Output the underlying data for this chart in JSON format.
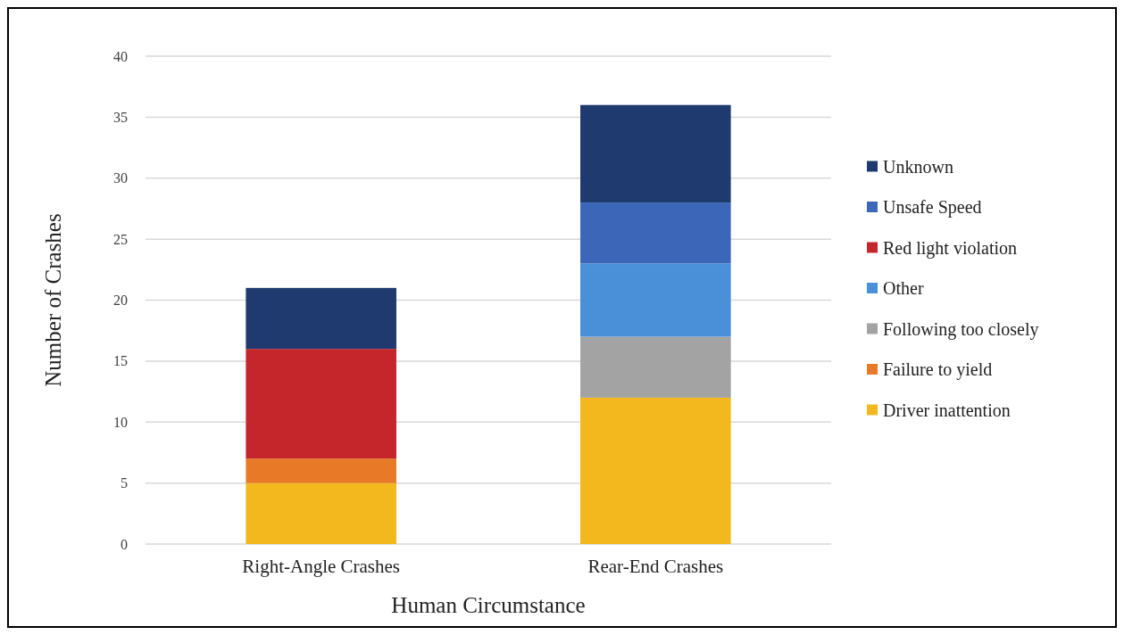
{
  "chart_data": {
    "type": "bar",
    "stacked": true,
    "xlabel": "Human Circumstance",
    "ylabel": "Number of Crashes",
    "categories": [
      "Right-Angle Crashes",
      "Rear-End Crashes"
    ],
    "series": [
      {
        "name": "Driver inattention",
        "color": "#f2b81d",
        "values": [
          5,
          12
        ]
      },
      {
        "name": "Failure to yield",
        "color": "#e87a27",
        "values": [
          2,
          null
        ]
      },
      {
        "name": "Following too closely",
        "color": "#a3a3a3",
        "values": [
          null,
          5
        ]
      },
      {
        "name": "Other",
        "color": "#4a90d9",
        "values": [
          null,
          6
        ]
      },
      {
        "name": "Red light violation",
        "color": "#c4262b",
        "values": [
          9,
          null
        ]
      },
      {
        "name": "Unsafe Speed",
        "color": "#3c67b8",
        "values": [
          null,
          5
        ]
      },
      {
        "name": "Unknown",
        "color": "#1f3a6e",
        "values": [
          5,
          8
        ]
      }
    ],
    "ylim": [
      0,
      40
    ],
    "yticks": [
      0,
      5,
      10,
      15,
      20,
      25,
      30,
      35,
      40
    ],
    "grid": "y",
    "legend": "right"
  }
}
